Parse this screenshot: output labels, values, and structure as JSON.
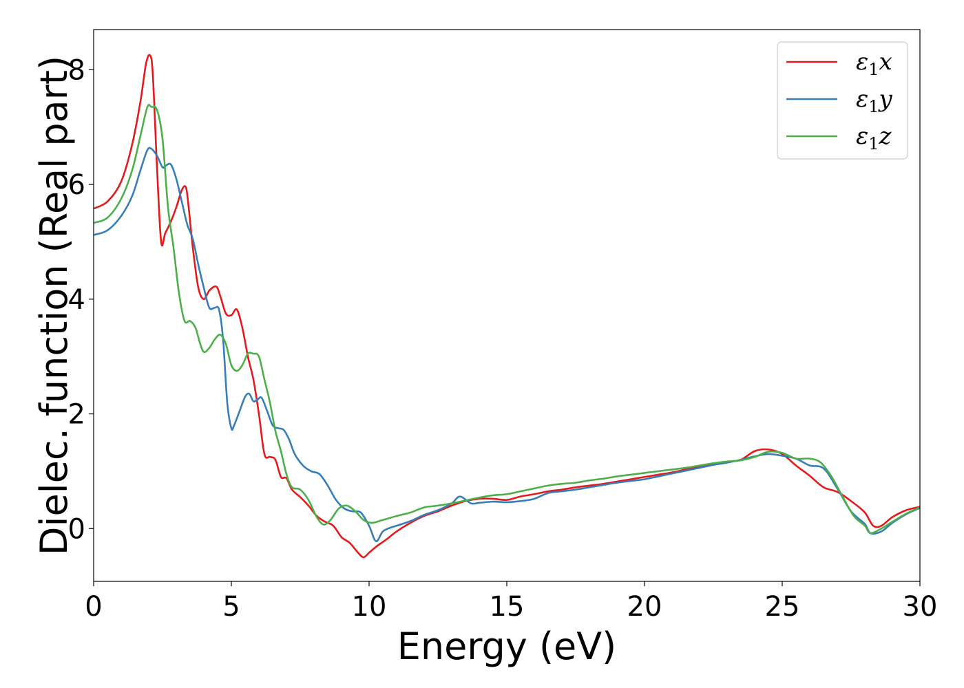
{
  "chart_data": {
    "type": "line",
    "xlabel": "Energy (eV)",
    "ylabel": "Dielec. function (Real part)",
    "xlim": [
      0,
      30
    ],
    "ylim": [
      -0.92,
      8.7
    ],
    "xticks": [
      0,
      5,
      10,
      15,
      20,
      25,
      30
    ],
    "yticks": [
      0,
      2,
      4,
      6,
      8
    ],
    "grid": false,
    "legend_position": "top-right",
    "series": [
      {
        "name": "ε1x",
        "legend": {
          "base": "ε",
          "sub": "1",
          "var": "x"
        },
        "color": "#e41a1c",
        "x": [
          0,
          0.5,
          1.0,
          1.4,
          1.7,
          1.9,
          2.05,
          2.15,
          2.3,
          2.45,
          2.6,
          2.8,
          3.0,
          3.2,
          3.35,
          3.45,
          3.6,
          3.8,
          4.0,
          4.2,
          4.45,
          4.6,
          4.8,
          5.0,
          5.2,
          5.4,
          5.6,
          5.8,
          6.0,
          6.2,
          6.4,
          6.6,
          6.8,
          7.0,
          7.2,
          7.5,
          7.8,
          8.1,
          8.4,
          8.7,
          9.0,
          9.3,
          9.6,
          9.8,
          10.0,
          10.3,
          10.6,
          11.0,
          11.5,
          12.0,
          12.5,
          13.0,
          13.5,
          14.0,
          14.5,
          15.0,
          15.5,
          16.0,
          16.5,
          17.0,
          17.5,
          18.0,
          18.5,
          19.0,
          19.5,
          20.0,
          20.5,
          21.0,
          21.5,
          22.0,
          22.5,
          23.0,
          23.5,
          24.0,
          24.5,
          25.0,
          25.5,
          26.0,
          26.5,
          27.0,
          27.5,
          28.0,
          28.3,
          28.6,
          29.0,
          29.5,
          30.0
        ],
        "values": [
          5.58,
          5.7,
          6.05,
          6.7,
          7.45,
          8.1,
          8.25,
          7.9,
          6.3,
          5.0,
          5.15,
          5.35,
          5.6,
          5.9,
          5.95,
          5.6,
          4.9,
          4.2,
          4.0,
          4.15,
          4.22,
          4.05,
          3.75,
          3.72,
          3.82,
          3.5,
          3.0,
          2.6,
          2.0,
          1.3,
          1.25,
          1.2,
          0.9,
          0.88,
          0.68,
          0.55,
          0.4,
          0.22,
          0.12,
          0.05,
          -0.15,
          -0.25,
          -0.42,
          -0.5,
          -0.42,
          -0.3,
          -0.2,
          -0.05,
          0.1,
          0.22,
          0.3,
          0.4,
          0.48,
          0.52,
          0.52,
          0.5,
          0.56,
          0.6,
          0.65,
          0.68,
          0.72,
          0.75,
          0.78,
          0.82,
          0.86,
          0.9,
          0.94,
          0.98,
          1.03,
          1.08,
          1.13,
          1.16,
          1.2,
          1.35,
          1.38,
          1.3,
          1.1,
          0.92,
          0.72,
          0.64,
          0.48,
          0.28,
          0.05,
          0.05,
          0.2,
          0.32,
          0.38
        ]
      },
      {
        "name": "ε1y",
        "legend": {
          "base": "ε",
          "sub": "1",
          "var": "y"
        },
        "color": "#377eb8",
        "x": [
          0,
          0.5,
          1.0,
          1.4,
          1.7,
          1.95,
          2.1,
          2.3,
          2.5,
          2.6,
          2.8,
          3.0,
          3.2,
          3.4,
          3.6,
          3.8,
          4.0,
          4.2,
          4.4,
          4.55,
          4.7,
          4.85,
          5.0,
          5.1,
          5.3,
          5.5,
          5.65,
          5.8,
          5.95,
          6.1,
          6.3,
          6.5,
          6.7,
          6.9,
          7.1,
          7.3,
          7.6,
          7.9,
          8.2,
          8.5,
          8.8,
          9.1,
          9.4,
          9.7,
          10.0,
          10.25,
          10.5,
          10.8,
          11.2,
          11.6,
          12.0,
          12.5,
          13.0,
          13.3,
          13.7,
          14.0,
          14.5,
          15.0,
          15.5,
          16.0,
          16.5,
          17.0,
          17.5,
          18.0,
          18.5,
          19.0,
          19.5,
          20.0,
          20.5,
          21.0,
          21.5,
          22.0,
          22.5,
          23.0,
          23.5,
          24.0,
          24.5,
          25.0,
          25.5,
          26.0,
          26.5,
          27.0,
          27.5,
          28.0,
          28.2,
          28.6,
          29.0,
          29.5,
          30.0
        ],
        "values": [
          5.12,
          5.2,
          5.45,
          5.8,
          6.25,
          6.6,
          6.62,
          6.5,
          6.3,
          6.32,
          6.35,
          6.1,
          5.7,
          5.3,
          5.05,
          4.6,
          4.2,
          3.85,
          3.85,
          3.82,
          3.3,
          2.2,
          1.75,
          1.8,
          2.05,
          2.3,
          2.35,
          2.22,
          2.25,
          2.28,
          2.05,
          1.8,
          1.75,
          1.72,
          1.55,
          1.3,
          1.1,
          1.0,
          0.95,
          0.75,
          0.5,
          0.35,
          0.3,
          0.28,
          0.05,
          -0.22,
          -0.05,
          0.02,
          0.08,
          0.15,
          0.24,
          0.32,
          0.44,
          0.56,
          0.44,
          0.45,
          0.47,
          0.46,
          0.48,
          0.52,
          0.62,
          0.65,
          0.68,
          0.72,
          0.76,
          0.8,
          0.83,
          0.86,
          0.91,
          0.96,
          1.01,
          1.06,
          1.11,
          1.15,
          1.2,
          1.26,
          1.3,
          1.27,
          1.22,
          1.1,
          1.05,
          0.7,
          0.3,
          0.08,
          -0.08,
          -0.05,
          0.1,
          0.25,
          0.36
        ]
      },
      {
        "name": "ε1z",
        "legend": {
          "base": "ε",
          "sub": "1",
          "var": "z"
        },
        "color": "#4daf4a",
        "x": [
          0,
          0.5,
          1.0,
          1.4,
          1.7,
          1.95,
          2.1,
          2.3,
          2.5,
          2.7,
          2.9,
          3.1,
          3.3,
          3.5,
          3.7,
          3.85,
          4.0,
          4.2,
          4.4,
          4.6,
          4.8,
          5.0,
          5.2,
          5.4,
          5.6,
          5.8,
          6.0,
          6.2,
          6.4,
          6.6,
          6.8,
          7.0,
          7.2,
          7.5,
          7.8,
          8.1,
          8.35,
          8.6,
          8.9,
          9.2,
          9.5,
          9.8,
          10.1,
          10.5,
          11.0,
          11.5,
          12.0,
          12.5,
          13.0,
          13.5,
          14.0,
          14.5,
          15.0,
          15.5,
          16.0,
          16.5,
          17.0,
          17.5,
          18.0,
          18.5,
          19.0,
          19.5,
          20.0,
          20.5,
          21.0,
          21.5,
          22.0,
          22.5,
          23.0,
          23.5,
          24.0,
          24.5,
          25.0,
          25.5,
          26.0,
          26.4,
          26.8,
          27.2,
          27.6,
          28.0,
          28.2,
          28.6,
          29.0,
          29.5,
          30.0
        ],
        "values": [
          5.33,
          5.42,
          5.75,
          6.25,
          6.85,
          7.35,
          7.35,
          7.3,
          6.8,
          5.6,
          4.9,
          4.1,
          3.62,
          3.62,
          3.5,
          3.25,
          3.08,
          3.15,
          3.3,
          3.38,
          3.22,
          2.85,
          2.75,
          2.85,
          3.05,
          3.05,
          3.0,
          2.6,
          2.2,
          1.7,
          1.35,
          0.95,
          0.72,
          0.68,
          0.5,
          0.2,
          0.07,
          0.15,
          0.35,
          0.4,
          0.3,
          0.15,
          0.1,
          0.15,
          0.22,
          0.28,
          0.37,
          0.4,
          0.44,
          0.49,
          0.54,
          0.58,
          0.6,
          0.65,
          0.7,
          0.75,
          0.78,
          0.8,
          0.84,
          0.87,
          0.91,
          0.94,
          0.97,
          1.0,
          1.03,
          1.06,
          1.1,
          1.14,
          1.17,
          1.19,
          1.25,
          1.34,
          1.32,
          1.22,
          1.22,
          1.15,
          0.9,
          0.55,
          0.22,
          0.05,
          -0.08,
          0.0,
          0.12,
          0.26,
          0.37
        ]
      }
    ]
  }
}
